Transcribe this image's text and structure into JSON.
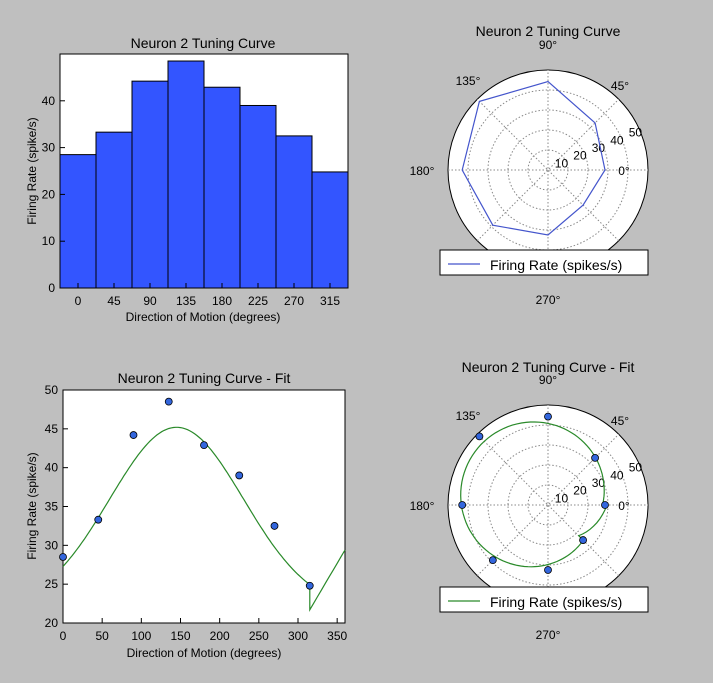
{
  "colors": {
    "background": "#bfbfbf",
    "bar": "#3355ff",
    "polar_line": "#4455cc",
    "fit_line": "#2a8a2a",
    "marker": "#3366dd"
  },
  "chart_data": [
    {
      "type": "bar",
      "title": "Neuron 2 Tuning Curve",
      "xlabel": "Direction of Motion (degrees)",
      "ylabel": "Firing Rate (spike/s)",
      "categories": [
        "0",
        "45",
        "90",
        "135",
        "180",
        "225",
        "270",
        "315"
      ],
      "values": [
        28.5,
        33.3,
        44.2,
        48.5,
        42.9,
        39.0,
        32.5,
        24.8
      ],
      "ylim": [
        0,
        50
      ],
      "yticks": [
        0,
        10,
        20,
        30,
        40
      ]
    },
    {
      "type": "line",
      "subtype": "polar",
      "title": "Neuron 2 Tuning Curve",
      "angles": [
        0,
        45,
        90,
        135,
        180,
        225,
        270,
        315
      ],
      "values": [
        28.5,
        33.3,
        44.2,
        48.5,
        42.9,
        39.0,
        32.5,
        24.8
      ],
      "rmax": 50,
      "rticks": [
        "10",
        "20",
        "30",
        "40",
        "50"
      ],
      "angle_labels": [
        "0°",
        "45°",
        "90°",
        "135°",
        "180°",
        "270°"
      ],
      "legend": [
        "Firing Rate (spikes/s)"
      ]
    },
    {
      "type": "scatter",
      "title": "Neuron 2 Tuning Curve - Fit",
      "xlabel": "Direction of Motion (degrees)",
      "ylabel": "Firing Rate (spike/s)",
      "x": [
        0,
        45,
        90,
        135,
        180,
        225,
        270,
        315
      ],
      "y": [
        28.5,
        33.3,
        44.2,
        48.5,
        42.9,
        39.0,
        32.5,
        24.8
      ],
      "fit": {
        "amplitude": 23.5,
        "center": 145,
        "offset": 21.7,
        "sigma": 171
      },
      "xlim": [
        0,
        360
      ],
      "ylim": [
        20,
        50
      ],
      "xticks": [
        "0",
        "50",
        "100",
        "150",
        "200",
        "250",
        "300",
        "350"
      ],
      "yticks": [
        "20",
        "25",
        "30",
        "35",
        "40",
        "45",
        "50"
      ]
    },
    {
      "type": "scatter",
      "subtype": "polar",
      "title": "Neuron 2 Tuning Curve - Fit",
      "angles": [
        0,
        45,
        90,
        135,
        180,
        225,
        270,
        315
      ],
      "values": [
        28.5,
        33.3,
        44.2,
        48.5,
        42.9,
        39.0,
        32.5,
        24.8
      ],
      "rmax": 50,
      "rticks": [
        "10",
        "20",
        "30",
        "40",
        "50"
      ],
      "angle_labels": [
        "0°",
        "45°",
        "90°",
        "135°",
        "180°",
        "270°"
      ],
      "legend": [
        "Firing Rate (spikes/s)"
      ]
    }
  ]
}
